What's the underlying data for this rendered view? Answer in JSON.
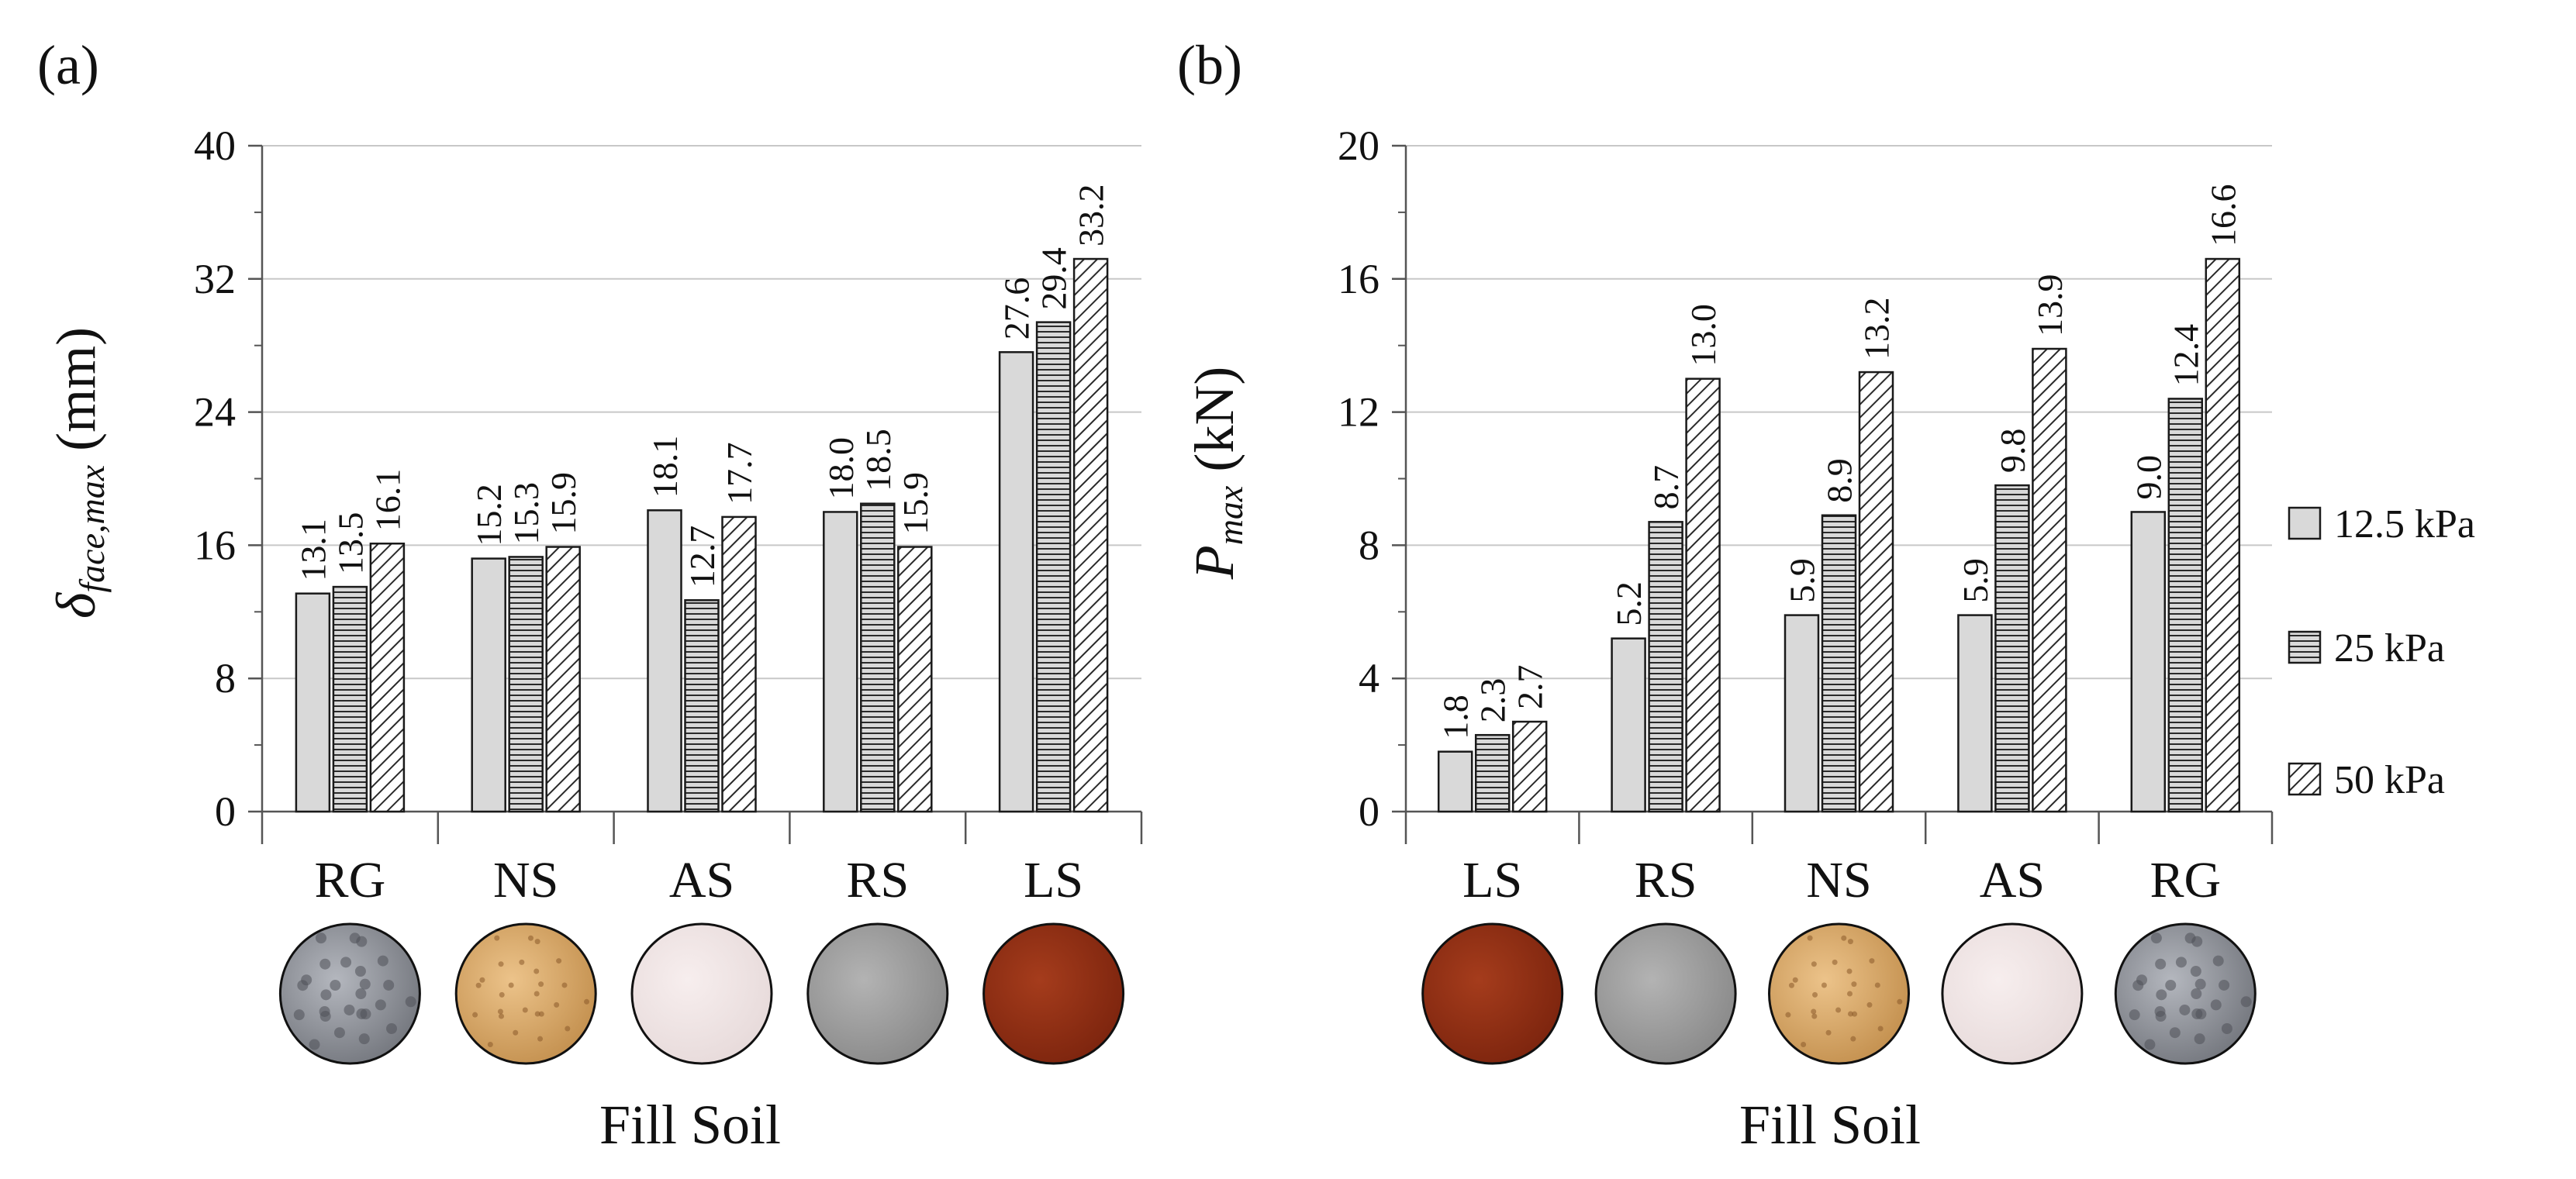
{
  "legend": [
    {
      "label": "12.5 kPa",
      "pattern": "solid",
      "color": "#d9d9d9"
    },
    {
      "label": "25 kPa",
      "pattern": "horizontal-lines",
      "color": "#d9d9d9"
    },
    {
      "label": "50 kPa",
      "pattern": "diagonal-lines",
      "color": "#ffffff"
    }
  ],
  "soil_colors": {
    "RG": "#8c8f96",
    "NS": "#d6a86a",
    "AS": "#efe3e3",
    "RS": "#9a9a9a",
    "LS": "#8e2e14"
  },
  "chart_data": [
    {
      "type": "bar",
      "panel_label": "(a)",
      "title": "",
      "ylabel_symbol": "δ",
      "ylabel_subscript": "face,max",
      "ylabel_unit": " (mm)",
      "xlabel": "Fill Soil",
      "categories": [
        "RG",
        "NS",
        "AS",
        "RS",
        "LS"
      ],
      "ylim": [
        0,
        40
      ],
      "yticks": [
        0,
        8,
        16,
        24,
        32,
        40
      ],
      "ytick_labels": [
        "0",
        "8",
        "16",
        "24",
        "32",
        "40"
      ],
      "series": [
        {
          "name": "12.5 kPa",
          "values": [
            13.1,
            15.2,
            18.1,
            18.0,
            27.6
          ],
          "labels": [
            "13.1",
            "15.2",
            "18.1",
            "18.0",
            "27.6"
          ]
        },
        {
          "name": "25 kPa",
          "values": [
            13.5,
            15.3,
            12.7,
            18.5,
            29.4
          ],
          "labels": [
            "13.5",
            "15.3",
            "12.7",
            "18.5",
            "29.4"
          ]
        },
        {
          "name": "50 kPa",
          "values": [
            16.1,
            15.9,
            17.7,
            15.9,
            33.2
          ],
          "labels": [
            "16.1",
            "15.9",
            "17.7",
            "15.9",
            "33.2"
          ]
        }
      ],
      "grid": true
    },
    {
      "type": "bar",
      "panel_label": "(b)",
      "title": "",
      "ylabel_symbol": "P",
      "ylabel_subscript": "max",
      "ylabel_unit": " (kN)",
      "xlabel": "Fill Soil",
      "categories": [
        "LS",
        "RS",
        "NS",
        "AS",
        "RG"
      ],
      "ylim": [
        0,
        20
      ],
      "yticks": [
        0,
        4,
        8,
        12,
        16,
        20
      ],
      "ytick_labels": [
        "0",
        "4",
        "8",
        "12",
        "16",
        "20"
      ],
      "series": [
        {
          "name": "12.5 kPa",
          "values": [
            1.8,
            5.2,
            5.9,
            5.9,
            9.0
          ],
          "labels": [
            "1.8",
            "5.2",
            "5.9",
            "5.9",
            "9.0"
          ]
        },
        {
          "name": "25 kPa",
          "values": [
            2.3,
            8.7,
            8.9,
            9.8,
            12.4
          ],
          "labels": [
            "2.3",
            "8.7",
            "8.9",
            "9.8",
            "12.4"
          ]
        },
        {
          "name": "50 kPa",
          "values": [
            2.7,
            13.0,
            13.2,
            13.9,
            16.6
          ],
          "labels": [
            "2.7",
            "13.0",
            "13.2",
            "13.9",
            "16.6"
          ]
        }
      ],
      "grid": true,
      "legend_position": "right"
    }
  ]
}
